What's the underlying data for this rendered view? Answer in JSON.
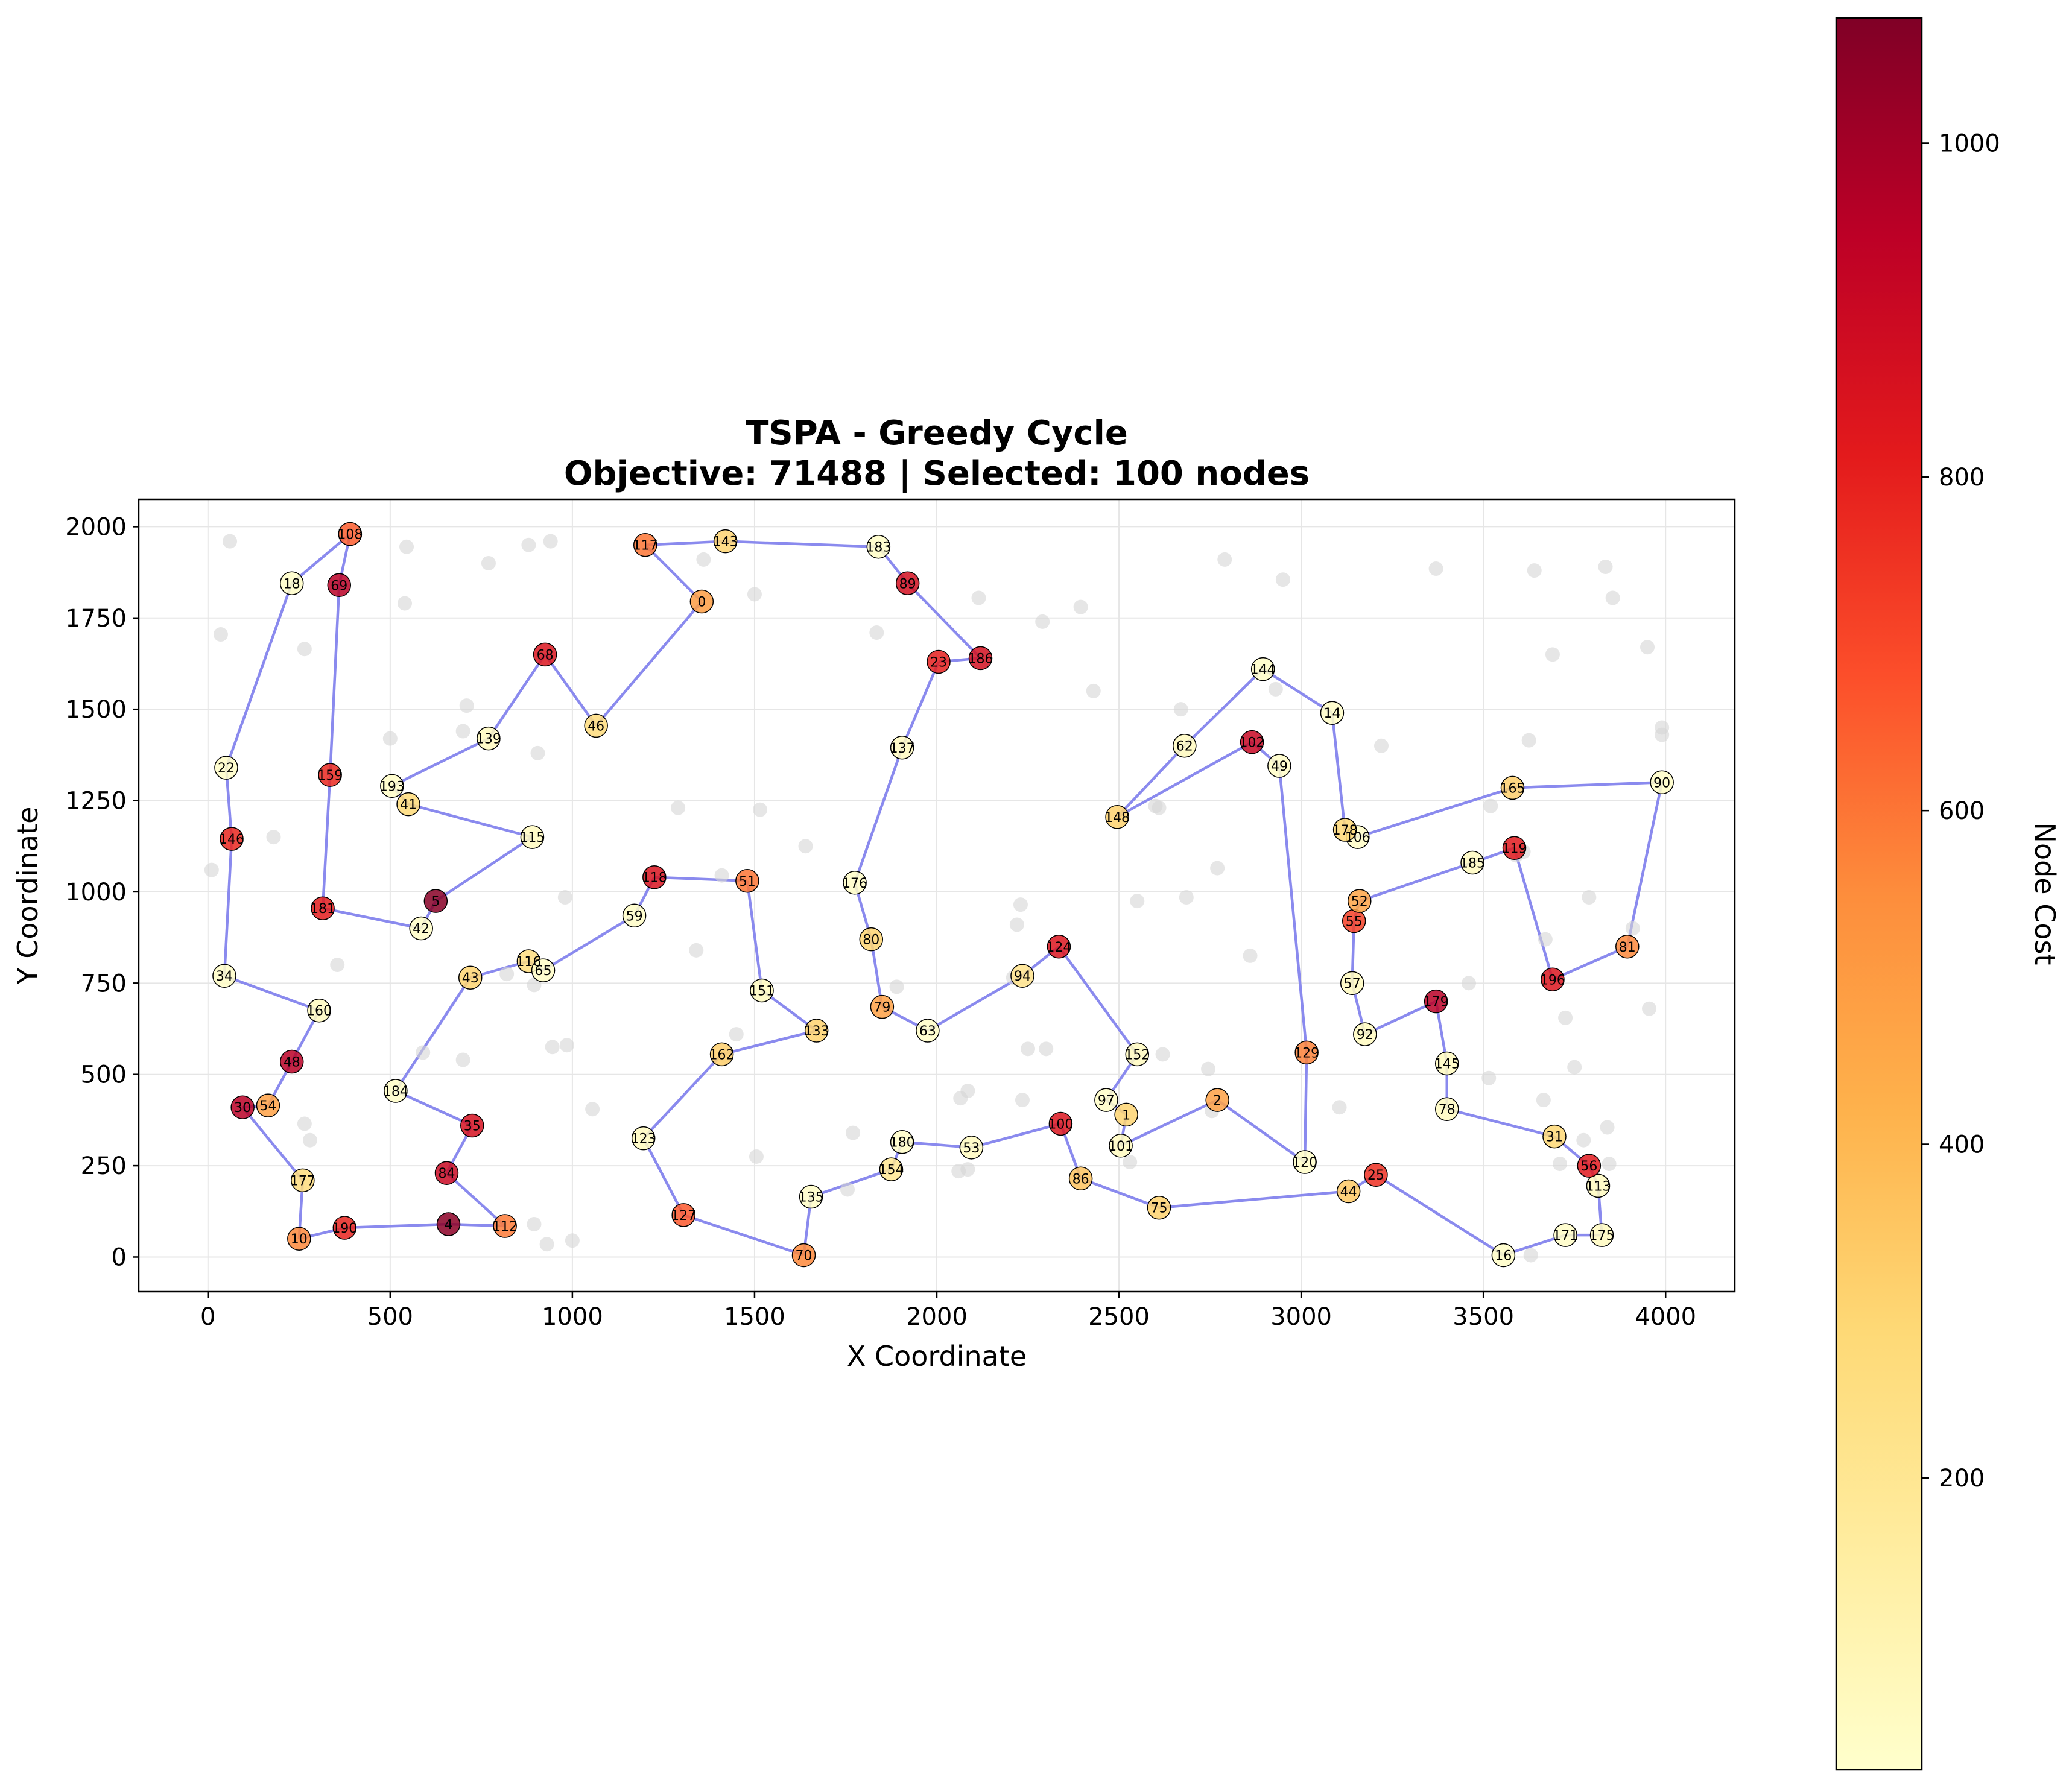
{
  "chart_data": {
    "type": "scatter",
    "title": "TSPA - Greedy Cycle",
    "subtitle": "Objective: 71488 | Selected: 100 nodes",
    "xlabel": "X Coordinate",
    "ylabel": "Y Coordinate",
    "xlim": [
      -190,
      4190
    ],
    "ylim": [
      -95,
      2075
    ],
    "xticks": [
      0,
      500,
      1000,
      1500,
      2000,
      2500,
      3000,
      3500,
      4000
    ],
    "yticks": [
      0,
      250,
      500,
      750,
      1000,
      1250,
      1500,
      1750,
      2000
    ],
    "grid": true,
    "colorbar": {
      "label": "Node Cost",
      "range": [
        25,
        1075
      ],
      "ticks": [
        200,
        400,
        600,
        800,
        1000
      ],
      "colors": [
        "#ffffcc",
        "#ffeda0",
        "#fed976",
        "#feb24c",
        "#fd8d3c",
        "#fc4e2a",
        "#e31a1c",
        "#bd0026",
        "#800026"
      ]
    },
    "route_color": "#8a8aee",
    "unselected_color": "#d6d6d6",
    "route": [
      {
        "id": "108",
        "x": 390,
        "y": 1980,
        "cost": 650
      },
      {
        "id": "18",
        "x": 230,
        "y": 1845,
        "cost": 40
      },
      {
        "id": "22",
        "x": 50,
        "y": 1340,
        "cost": 40
      },
      {
        "id": "146",
        "x": 65,
        "y": 1145,
        "cost": 780
      },
      {
        "id": "34",
        "x": 45,
        "y": 770,
        "cost": 40
      },
      {
        "id": "160",
        "x": 305,
        "y": 675,
        "cost": 60
      },
      {
        "id": "48",
        "x": 230,
        "y": 535,
        "cost": 950
      },
      {
        "id": "54",
        "x": 165,
        "y": 415,
        "cost": 480
      },
      {
        "id": "30",
        "x": 95,
        "y": 410,
        "cost": 950
      },
      {
        "id": "177",
        "x": 260,
        "y": 210,
        "cost": 270
      },
      {
        "id": "10",
        "x": 250,
        "y": 50,
        "cost": 560
      },
      {
        "id": "190",
        "x": 375,
        "y": 80,
        "cost": 790
      },
      {
        "id": "4",
        "x": 660,
        "y": 90,
        "cost": 1050
      },
      {
        "id": "112",
        "x": 815,
        "y": 85,
        "cost": 590
      },
      {
        "id": "84",
        "x": 655,
        "y": 230,
        "cost": 900
      },
      {
        "id": "35",
        "x": 725,
        "y": 360,
        "cost": 860
      },
      {
        "id": "184",
        "x": 515,
        "y": 455,
        "cost": 40
      },
      {
        "id": "43",
        "x": 720,
        "y": 765,
        "cost": 300
      },
      {
        "id": "116",
        "x": 880,
        "y": 810,
        "cost": 260
      },
      {
        "id": "65",
        "x": 920,
        "y": 785,
        "cost": 40
      },
      {
        "id": "59",
        "x": 1170,
        "y": 935,
        "cost": 40
      },
      {
        "id": "118",
        "x": 1225,
        "y": 1040,
        "cost": 850
      },
      {
        "id": "51",
        "x": 1480,
        "y": 1030,
        "cost": 600
      },
      {
        "id": "151",
        "x": 1520,
        "y": 730,
        "cost": 60
      },
      {
        "id": "133",
        "x": 1670,
        "y": 620,
        "cost": 310
      },
      {
        "id": "162",
        "x": 1410,
        "y": 555,
        "cost": 320
      },
      {
        "id": "123",
        "x": 1195,
        "y": 325,
        "cost": 60
      },
      {
        "id": "127",
        "x": 1305,
        "y": 115,
        "cost": 660
      },
      {
        "id": "70",
        "x": 1635,
        "y": 5,
        "cost": 560
      },
      {
        "id": "135",
        "x": 1655,
        "y": 165,
        "cost": 40
      },
      {
        "id": "154",
        "x": 1875,
        "y": 240,
        "cost": 200
      },
      {
        "id": "180",
        "x": 1905,
        "y": 315,
        "cost": 40
      },
      {
        "id": "53",
        "x": 2095,
        "y": 300,
        "cost": 60
      },
      {
        "id": "100",
        "x": 2340,
        "y": 365,
        "cost": 840
      },
      {
        "id": "86",
        "x": 2395,
        "y": 215,
        "cost": 360
      },
      {
        "id": "75",
        "x": 2610,
        "y": 135,
        "cost": 310
      },
      {
        "id": "44",
        "x": 3130,
        "y": 180,
        "cost": 340
      },
      {
        "id": "25",
        "x": 3205,
        "y": 225,
        "cost": 760
      },
      {
        "id": "16",
        "x": 3555,
        "y": 5,
        "cost": 40
      },
      {
        "id": "171",
        "x": 3725,
        "y": 60,
        "cost": 40
      },
      {
        "id": "175",
        "x": 3825,
        "y": 60,
        "cost": 60
      },
      {
        "id": "113",
        "x": 3815,
        "y": 195,
        "cost": 60
      },
      {
        "id": "56",
        "x": 3790,
        "y": 250,
        "cost": 820
      },
      {
        "id": "31",
        "x": 3695,
        "y": 330,
        "cost": 290
      },
      {
        "id": "78",
        "x": 3400,
        "y": 405,
        "cost": 60
      },
      {
        "id": "145",
        "x": 3400,
        "y": 530,
        "cost": 60
      },
      {
        "id": "179",
        "x": 3370,
        "y": 700,
        "cost": 950
      },
      {
        "id": "92",
        "x": 3175,
        "y": 610,
        "cost": 60
      },
      {
        "id": "57",
        "x": 3140,
        "y": 750,
        "cost": 60
      },
      {
        "id": "55",
        "x": 3145,
        "y": 920,
        "cost": 720
      },
      {
        "id": "52",
        "x": 3160,
        "y": 975,
        "cost": 470
      },
      {
        "id": "185",
        "x": 3470,
        "y": 1080,
        "cost": 60
      },
      {
        "id": "119",
        "x": 3585,
        "y": 1120,
        "cost": 820
      },
      {
        "id": "196",
        "x": 3690,
        "y": 760,
        "cost": 840
      },
      {
        "id": "81",
        "x": 3895,
        "y": 850,
        "cost": 560
      },
      {
        "id": "90",
        "x": 3990,
        "y": 1300,
        "cost": 40
      },
      {
        "id": "165",
        "x": 3580,
        "y": 1285,
        "cost": 320
      },
      {
        "id": "106",
        "x": 3155,
        "y": 1150,
        "cost": 40
      },
      {
        "id": "178",
        "x": 3120,
        "y": 1170,
        "cost": 290
      },
      {
        "id": "14",
        "x": 3085,
        "y": 1490,
        "cost": 40
      },
      {
        "id": "144",
        "x": 2895,
        "y": 1610,
        "cost": 40
      },
      {
        "id": "62",
        "x": 2680,
        "y": 1400,
        "cost": 60
      },
      {
        "id": "148",
        "x": 2495,
        "y": 1205,
        "cost": 310
      },
      {
        "id": "102",
        "x": 2865,
        "y": 1410,
        "cost": 910
      },
      {
        "id": "49",
        "x": 2940,
        "y": 1345,
        "cost": 40
      },
      {
        "id": "129",
        "x": 3015,
        "y": 560,
        "cost": 570
      },
      {
        "id": "120",
        "x": 3010,
        "y": 260,
        "cost": 40
      },
      {
        "id": "2",
        "x": 2770,
        "y": 430,
        "cost": 480
      },
      {
        "id": "101",
        "x": 2505,
        "y": 305,
        "cost": 60
      },
      {
        "id": "1",
        "x": 2520,
        "y": 390,
        "cost": 300
      },
      {
        "id": "97",
        "x": 2465,
        "y": 430,
        "cost": 40
      },
      {
        "id": "152",
        "x": 2550,
        "y": 555,
        "cost": 60
      },
      {
        "id": "124",
        "x": 2335,
        "y": 850,
        "cost": 840
      },
      {
        "id": "94",
        "x": 2235,
        "y": 770,
        "cost": 220
      },
      {
        "id": "63",
        "x": 1975,
        "y": 620,
        "cost": 40
      },
      {
        "id": "79",
        "x": 1850,
        "y": 685,
        "cost": 480
      },
      {
        "id": "80",
        "x": 1820,
        "y": 870,
        "cost": 300
      },
      {
        "id": "176",
        "x": 1775,
        "y": 1025,
        "cost": 40
      },
      {
        "id": "137",
        "x": 1905,
        "y": 1395,
        "cost": 60
      },
      {
        "id": "23",
        "x": 2005,
        "y": 1630,
        "cost": 800
      },
      {
        "id": "186",
        "x": 2120,
        "y": 1640,
        "cost": 870
      },
      {
        "id": "89",
        "x": 1920,
        "y": 1845,
        "cost": 870
      },
      {
        "id": "183",
        "x": 1840,
        "y": 1945,
        "cost": 40
      },
      {
        "id": "143",
        "x": 1420,
        "y": 1960,
        "cost": 300
      },
      {
        "id": "117",
        "x": 1200,
        "y": 1950,
        "cost": 600
      },
      {
        "id": "0",
        "x": 1355,
        "y": 1795,
        "cost": 490
      },
      {
        "id": "46",
        "x": 1065,
        "y": 1455,
        "cost": 270
      },
      {
        "id": "68",
        "x": 925,
        "y": 1650,
        "cost": 840
      },
      {
        "id": "139",
        "x": 770,
        "y": 1420,
        "cost": 60
      },
      {
        "id": "193",
        "x": 505,
        "y": 1290,
        "cost": 40
      },
      {
        "id": "41",
        "x": 550,
        "y": 1240,
        "cost": 280
      },
      {
        "id": "115",
        "x": 890,
        "y": 1150,
        "cost": 60
      },
      {
        "id": "5",
        "x": 625,
        "y": 975,
        "cost": 1060
      },
      {
        "id": "42",
        "x": 585,
        "y": 900,
        "cost": 40
      },
      {
        "id": "181",
        "x": 315,
        "y": 955,
        "cost": 810
      },
      {
        "id": "159",
        "x": 335,
        "y": 1320,
        "cost": 780
      },
      {
        "id": "69",
        "x": 360,
        "y": 1840,
        "cost": 950
      }
    ],
    "unselected": [
      [
        60,
        1960
      ],
      [
        545,
        1945
      ],
      [
        940,
        1960
      ],
      [
        880,
        1950
      ],
      [
        770,
        1900
      ],
      [
        1360,
        1910
      ],
      [
        1500,
        1815
      ],
      [
        540,
        1790
      ],
      [
        265,
        1665
      ],
      [
        35,
        1705
      ],
      [
        2115,
        1805
      ],
      [
        2395,
        1780
      ],
      [
        2290,
        1740
      ],
      [
        1835,
        1710
      ],
      [
        2790,
        1910
      ],
      [
        2950,
        1855
      ],
      [
        3370,
        1885
      ],
      [
        3640,
        1880
      ],
      [
        3835,
        1890
      ],
      [
        3855,
        1805
      ],
      [
        3690,
        1650
      ],
      [
        3950,
        1670
      ],
      [
        710,
        1510
      ],
      [
        700,
        1440
      ],
      [
        500,
        1420
      ],
      [
        905,
        1380
      ],
      [
        2430,
        1550
      ],
      [
        2670,
        1500
      ],
      [
        2930,
        1555
      ],
      [
        3220,
        1400
      ],
      [
        3625,
        1415
      ],
      [
        3990,
        1450
      ],
      [
        3990,
        1430
      ],
      [
        1290,
        1230
      ],
      [
        1515,
        1225
      ],
      [
        2610,
        1230
      ],
      [
        2600,
        1235
      ],
      [
        3520,
        1235
      ],
      [
        180,
        1150
      ],
      [
        10,
        1060
      ],
      [
        1640,
        1125
      ],
      [
        1410,
        1045
      ],
      [
        980,
        985
      ],
      [
        2770,
        1065
      ],
      [
        2230,
        965
      ],
      [
        2220,
        910
      ],
      [
        2550,
        975
      ],
      [
        2685,
        985
      ],
      [
        3590,
        1100
      ],
      [
        3610,
        1110
      ],
      [
        3790,
        985
      ],
      [
        3910,
        900
      ],
      [
        3670,
        870
      ],
      [
        1340,
        840
      ],
      [
        355,
        800
      ],
      [
        820,
        775
      ],
      [
        895,
        745
      ],
      [
        1890,
        740
      ],
      [
        2210,
        765
      ],
      [
        3460,
        750
      ],
      [
        2860,
        825
      ],
      [
        3725,
        655
      ],
      [
        3955,
        680
      ],
      [
        1450,
        610
      ],
      [
        945,
        575
      ],
      [
        985,
        580
      ],
      [
        700,
        540
      ],
      [
        590,
        560
      ],
      [
        1420,
        550
      ],
      [
        2250,
        570
      ],
      [
        2300,
        570
      ],
      [
        2620,
        555
      ],
      [
        2745,
        515
      ],
      [
        3105,
        410
      ],
      [
        3750,
        520
      ],
      [
        3515,
        490
      ],
      [
        3665,
        430
      ],
      [
        2065,
        435
      ],
      [
        2085,
        455
      ],
      [
        2235,
        430
      ],
      [
        2755,
        400
      ],
      [
        1055,
        405
      ],
      [
        265,
        365
      ],
      [
        280,
        320
      ],
      [
        1770,
        340
      ],
      [
        1505,
        275
      ],
      [
        2530,
        260
      ],
      [
        3775,
        320
      ],
      [
        3840,
        355
      ],
      [
        3710,
        255
      ],
      [
        3845,
        255
      ],
      [
        2060,
        235
      ],
      [
        1755,
        185
      ],
      [
        895,
        90
      ],
      [
        930,
        35
      ],
      [
        1000,
        45
      ],
      [
        3630,
        5
      ],
      [
        2085,
        240
      ]
    ]
  }
}
